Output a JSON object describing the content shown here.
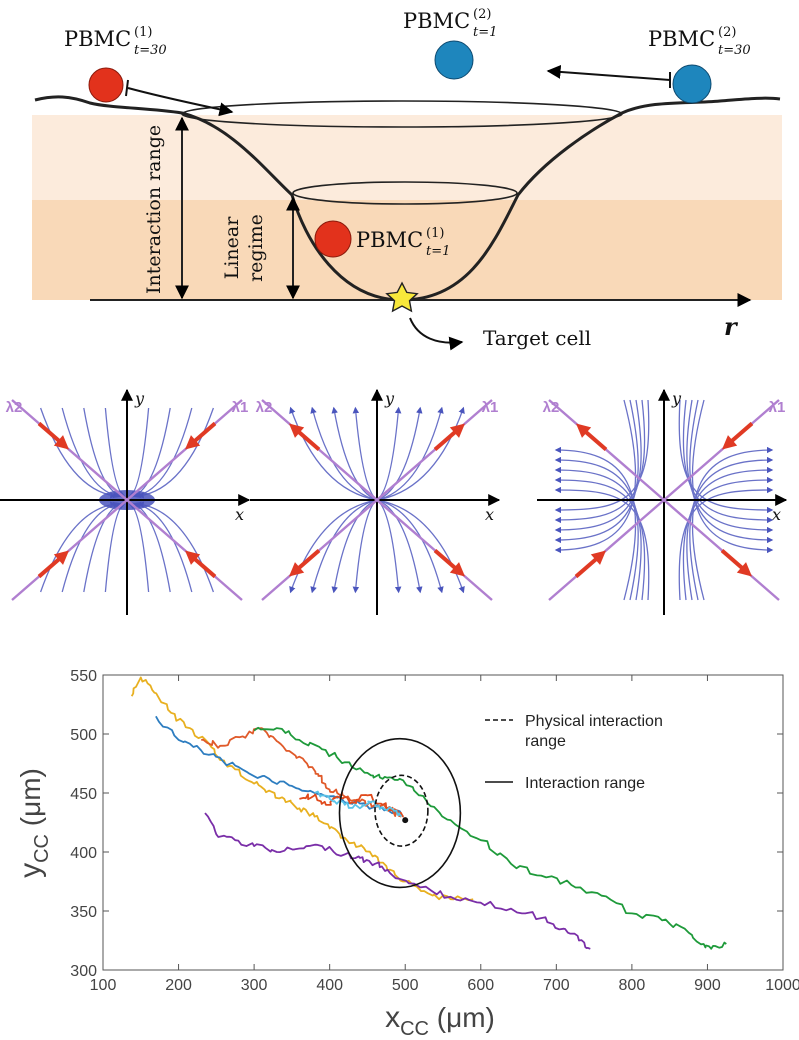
{
  "panel_a": {
    "labels": {
      "pbmc_label": "PBMC",
      "pbmc1_t30": {
        "sup": "(1)",
        "sub": "t=30"
      },
      "pbmc2_t1": {
        "sup": "(2)",
        "sub": "t=1"
      },
      "pbmc2_t30": {
        "sup": "(2)",
        "sub": "t=30"
      },
      "pbmc1_t1": {
        "sup": "(1)",
        "sub": "t=1"
      },
      "interaction_range": "Interaction range",
      "linear_regime_line1": "Linear",
      "linear_regime_line2": "regime",
      "target_cell": "Target cell",
      "r_axis": "r"
    },
    "colors": {
      "pbmc1": "#e2321c",
      "pbmc2": "#1e86bd",
      "band_outer": "#fcebdc",
      "band_inner": "#f9d9b8",
      "star": "#f8e83a"
    }
  },
  "panel_b": {
    "plots": [
      {
        "x_label": "x",
        "y_label": "y",
        "lambda2": "λ2",
        "lambda1": "λ1",
        "type": "stable-node"
      },
      {
        "x_label": "x",
        "y_label": "y",
        "lambda2": "λ2",
        "lambda1": "λ1",
        "type": "unstable-node"
      },
      {
        "x_label": "x",
        "y_label": "y",
        "lambda2": "λ2",
        "lambda1": "λ1",
        "type": "saddle"
      }
    ],
    "colors": {
      "eigen": "#b07fd0",
      "arrow": "#e03a24",
      "flow": "#6a72c8",
      "flow_head": "#4a55bd"
    }
  },
  "chart_data": {
    "type": "line",
    "xlabel": "x",
    "xlabel_sub": "CC",
    "xlabel_unit": "(μm)",
    "ylabel": "y",
    "ylabel_sub": "CC",
    "ylabel_unit": "(μm)",
    "xlim": [
      100,
      1000
    ],
    "ylim": [
      300,
      550
    ],
    "x_ticks": [
      100,
      200,
      300,
      400,
      500,
      600,
      700,
      800,
      900,
      1000
    ],
    "y_ticks": [
      300,
      350,
      400,
      450,
      500,
      550
    ],
    "grid": false,
    "legend_position": "top-right",
    "legend": [
      {
        "label_line1": "Physical interaction",
        "label_line2": "range",
        "style": "dashed"
      },
      {
        "label_line1": "Interaction range",
        "label_line2": "",
        "style": "solid"
      }
    ],
    "target_point": {
      "x": 500,
      "y": 427
    },
    "physical_range_ellipse": {
      "cx": 495,
      "cy": 435,
      "rx": 35,
      "ry": 30
    },
    "interaction_range_ellipse": {
      "cx": 493,
      "cy": 433,
      "rx": 80,
      "ry": 63
    },
    "series": [
      {
        "color": "#e8b020",
        "x": [
          138,
          150,
          168,
          190,
          215,
          240,
          255,
          275,
          300,
          320,
          340,
          360,
          380,
          400,
          420,
          440,
          460,
          480,
          500,
          530,
          560,
          590
        ],
        "y": [
          532,
          548,
          535,
          518,
          505,
          492,
          478,
          470,
          458,
          452,
          445,
          437,
          430,
          420,
          412,
          405,
          397,
          385,
          375,
          365,
          360,
          360
        ]
      },
      {
        "color": "#2d7dc0",
        "x": [
          170,
          200,
          230,
          260,
          290,
          320,
          350,
          380,
          410,
          440,
          460,
          480,
          495
        ],
        "y": [
          515,
          495,
          486,
          476,
          468,
          462,
          456,
          450,
          446,
          441,
          438,
          434,
          432
        ]
      },
      {
        "color": "#e05a2a",
        "x": [
          230,
          255,
          285,
          310,
          330,
          350,
          370,
          385,
          395,
          410,
          425,
          440,
          460,
          480,
          495
        ],
        "y": [
          495,
          490,
          498,
          505,
          494,
          484,
          475,
          466,
          455,
          450,
          446,
          443,
          440,
          436,
          430
        ]
      },
      {
        "color": "#1e9a3a",
        "x": [
          300,
          330,
          360,
          390,
          420,
          450,
          470,
          490,
          510,
          530,
          560,
          600,
          640,
          680,
          720,
          760,
          800,
          840,
          870,
          895,
          905,
          925
        ],
        "y": [
          503,
          505,
          495,
          487,
          476,
          467,
          462,
          461,
          455,
          441,
          427,
          410,
          390,
          380,
          372,
          363,
          348,
          342,
          335,
          322,
          318,
          322
        ]
      },
      {
        "color": "#7a2ea8",
        "x": [
          235,
          250,
          275,
          300,
          330,
          360,
          390,
          420,
          440,
          460,
          480,
          520,
          560,
          600,
          640,
          680,
          710,
          730,
          745
        ],
        "y": [
          433,
          415,
          410,
          405,
          400,
          403,
          405,
          398,
          395,
          390,
          382,
          370,
          362,
          357,
          352,
          344,
          335,
          325,
          318
        ]
      },
      {
        "color": "#e04a1c",
        "x": [
          360,
          380,
          395,
          410,
          430,
          450,
          470,
          485,
          498
        ],
        "y": [
          445,
          448,
          440,
          447,
          442,
          448,
          440,
          436,
          430
        ]
      },
      {
        "color": "#5ac3e8",
        "x": [
          380,
          400,
          420,
          440,
          455,
          470,
          485,
          495
        ],
        "y": [
          450,
          445,
          440,
          437,
          442,
          438,
          435,
          430
        ]
      }
    ]
  }
}
